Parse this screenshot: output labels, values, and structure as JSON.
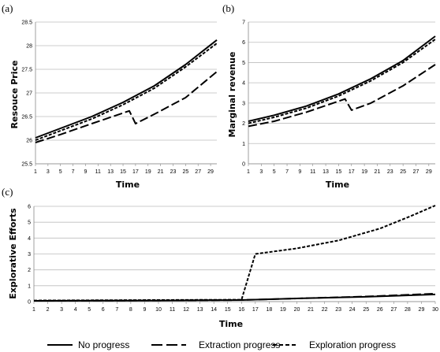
{
  "chart_data": [
    {
      "panel_label": "(a)",
      "type": "line",
      "xlabel": "Time",
      "ylabel": "Resouce Price",
      "x_ticks": [
        1,
        3,
        5,
        7,
        9,
        11,
        13,
        15,
        17,
        19,
        21,
        23,
        25,
        27,
        29
      ],
      "y_ticks": [
        "25.5",
        "26",
        "26.5",
        "27",
        "27.5",
        "28",
        "28.5"
      ],
      "ylim": [
        25.5,
        28.5
      ],
      "xlim": [
        1,
        30
      ],
      "grid": "horizontal",
      "series": [
        {
          "name": "No progress",
          "style": "solid",
          "x": [
            1,
            5,
            10,
            15,
            20,
            25,
            30
          ],
          "y": [
            26.05,
            26.25,
            26.5,
            26.8,
            27.15,
            27.6,
            28.12
          ]
        },
        {
          "name": "Extraction progress",
          "style": "longdash",
          "x": [
            1,
            5,
            10,
            16,
            17,
            20,
            25,
            30
          ],
          "y": [
            25.95,
            26.12,
            26.35,
            26.62,
            26.35,
            26.55,
            26.9,
            27.45
          ]
        },
        {
          "name": "Exploration progress",
          "style": "shortdash",
          "x": [
            1,
            5,
            10,
            15,
            20,
            25,
            30
          ],
          "y": [
            26.0,
            26.2,
            26.45,
            26.75,
            27.1,
            27.55,
            28.05
          ]
        }
      ]
    },
    {
      "panel_label": "(b)",
      "type": "line",
      "xlabel": "Time",
      "ylabel": "Marginal revenue",
      "x_ticks": [
        1,
        3,
        5,
        7,
        9,
        11,
        13,
        15,
        17,
        19,
        21,
        23,
        25,
        27,
        29
      ],
      "y_ticks": [
        "0",
        "1",
        "2",
        "3",
        "4",
        "5",
        "6",
        "7"
      ],
      "ylim": [
        0,
        7
      ],
      "xlim": [
        1,
        30
      ],
      "grid": "horizontal",
      "series": [
        {
          "name": "No progress",
          "style": "solid",
          "x": [
            1,
            5,
            10,
            15,
            20,
            25,
            30
          ],
          "y": [
            2.1,
            2.4,
            2.85,
            3.45,
            4.2,
            5.1,
            6.3
          ]
        },
        {
          "name": "Extraction progress",
          "style": "longdash",
          "x": [
            1,
            5,
            10,
            16,
            17,
            20,
            25,
            30
          ],
          "y": [
            1.85,
            2.1,
            2.55,
            3.2,
            2.65,
            3.0,
            3.85,
            4.9
          ]
        },
        {
          "name": "Exploration progress",
          "style": "shortdash",
          "x": [
            1,
            5,
            10,
            15,
            20,
            25,
            30
          ],
          "y": [
            2.0,
            2.3,
            2.75,
            3.35,
            4.1,
            5.0,
            6.15
          ]
        }
      ]
    },
    {
      "panel_label": "(c)",
      "type": "line",
      "xlabel": "Time",
      "ylabel": "Explorative Efforts",
      "x_ticks": [
        1,
        2,
        3,
        4,
        5,
        6,
        7,
        8,
        9,
        10,
        11,
        12,
        13,
        14,
        15,
        16,
        17,
        18,
        19,
        20,
        21,
        22,
        23,
        24,
        25,
        26,
        27,
        28,
        29,
        30
      ],
      "y_ticks": [
        "0",
        "1",
        "2",
        "3",
        "4",
        "5",
        "6"
      ],
      "ylim": [
        0,
        6
      ],
      "xlim": [
        1,
        30
      ],
      "grid": "horizontal",
      "series": [
        {
          "name": "No progress",
          "style": "solid",
          "x": [
            1,
            10,
            16,
            20,
            25,
            30
          ],
          "y": [
            0.05,
            0.07,
            0.1,
            0.2,
            0.3,
            0.45
          ]
        },
        {
          "name": "Extraction progress",
          "style": "longdash",
          "x": [
            1,
            10,
            16,
            20,
            25,
            30
          ],
          "y": [
            0.05,
            0.07,
            0.1,
            0.2,
            0.32,
            0.5
          ]
        },
        {
          "name": "Exploration progress",
          "style": "shortdash",
          "x": [
            1,
            10,
            16,
            17,
            20,
            23,
            26,
            28,
            30
          ],
          "y": [
            0.07,
            0.1,
            0.12,
            3.0,
            3.35,
            3.85,
            4.6,
            5.3,
            6.05
          ]
        }
      ]
    }
  ],
  "legend": {
    "placement": "bottom",
    "items": [
      {
        "label": "No progress",
        "style": "solid"
      },
      {
        "label": "Extraction progress",
        "style": "longdash"
      },
      {
        "label": "Exploration progress",
        "style": "shortdash"
      }
    ]
  }
}
